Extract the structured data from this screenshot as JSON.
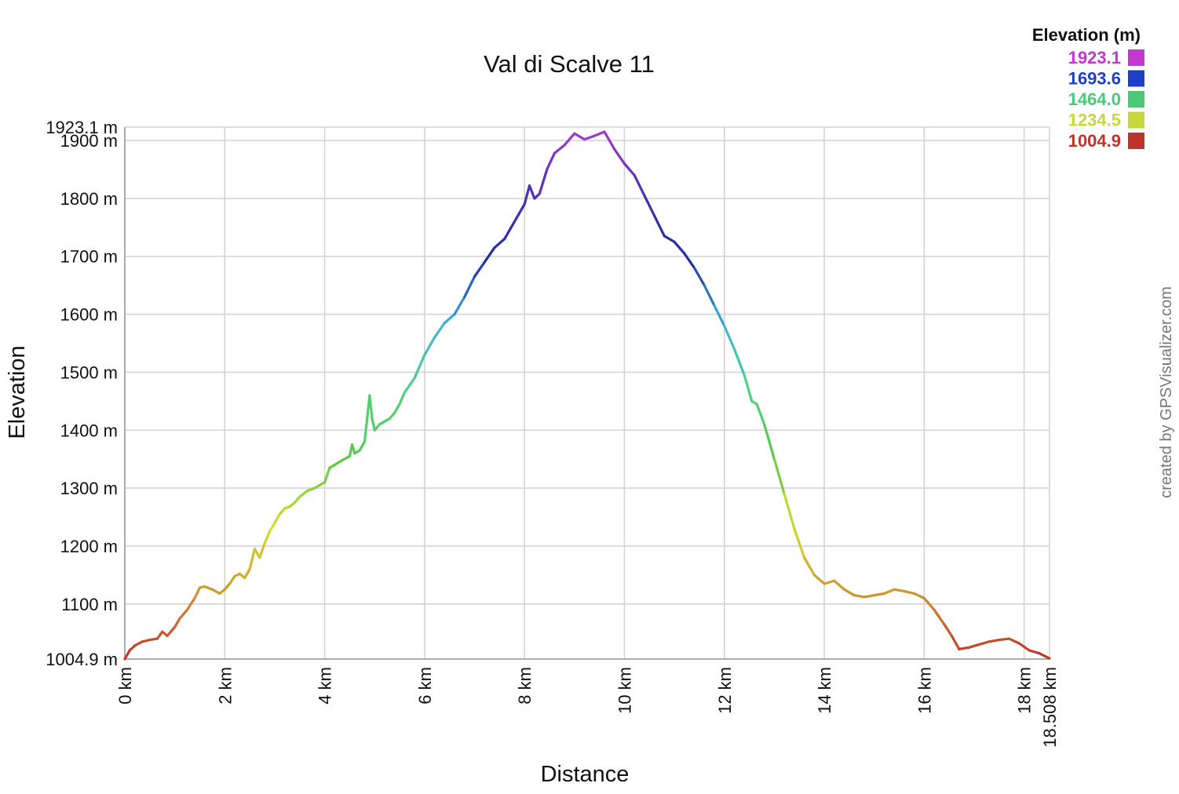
{
  "chart_data": {
    "type": "line",
    "title": "Val di Scalve 11",
    "xlabel": "Distance",
    "ylabel": "Elevation",
    "xlim": [
      0,
      18.508
    ],
    "ylim": [
      1004.9,
      1923.1
    ],
    "x_ticks": [
      {
        "value": 0,
        "label": "0 km"
      },
      {
        "value": 2,
        "label": "2 km"
      },
      {
        "value": 4,
        "label": "4 km"
      },
      {
        "value": 6,
        "label": "6 km"
      },
      {
        "value": 8,
        "label": "8 km"
      },
      {
        "value": 10,
        "label": "10 km"
      },
      {
        "value": 12,
        "label": "12 km"
      },
      {
        "value": 14,
        "label": "14 km"
      },
      {
        "value": 16,
        "label": "16 km"
      },
      {
        "value": 18,
        "label": "18 km"
      },
      {
        "value": 18.508,
        "label": "18.508 km"
      }
    ],
    "y_ticks": [
      {
        "value": 1004.9,
        "label": "1004.9 m"
      },
      {
        "value": 1100,
        "label": "1100 m"
      },
      {
        "value": 1200,
        "label": "1200 m"
      },
      {
        "value": 1300,
        "label": "1300 m"
      },
      {
        "value": 1400,
        "label": "1400 m"
      },
      {
        "value": 1500,
        "label": "1500 m"
      },
      {
        "value": 1600,
        "label": "1600 m"
      },
      {
        "value": 1700,
        "label": "1700 m"
      },
      {
        "value": 1800,
        "label": "1800 m"
      },
      {
        "value": 1900,
        "label": "1900 m"
      },
      {
        "value": 1923.1,
        "label": "1923.1 m"
      }
    ],
    "grid": true,
    "legend": {
      "title": "Elevation (m)",
      "placement": "top-right",
      "entries": [
        {
          "label": "1923.1",
          "color": "#c535cf"
        },
        {
          "label": "1693.6",
          "color": "#1e3fc8"
        },
        {
          "label": "1464.0",
          "color": "#4cc878"
        },
        {
          "label": "1234.5",
          "color": "#c6d938"
        },
        {
          "label": "1004.9",
          "color": "#c0332a"
        }
      ]
    },
    "color_scale": [
      {
        "elevation": 1004.9,
        "color": "#c0332a"
      },
      {
        "elevation": 1117.5,
        "color": "#d0952e"
      },
      {
        "elevation": 1234.5,
        "color": "#d6df30"
      },
      {
        "elevation": 1350.0,
        "color": "#5cc74a"
      },
      {
        "elevation": 1464.0,
        "color": "#4fd47e"
      },
      {
        "elevation": 1580.0,
        "color": "#3fb8d8"
      },
      {
        "elevation": 1693.6,
        "color": "#1e2f9e"
      },
      {
        "elevation": 1800.0,
        "color": "#4a2fb0"
      },
      {
        "elevation": 1923.1,
        "color": "#a83ad6"
      }
    ],
    "series": [
      {
        "x": [
          0,
          0.1,
          0.2,
          0.35,
          0.5,
          0.65,
          0.75,
          0.85,
          1.0,
          1.1,
          1.25,
          1.4,
          1.5,
          1.6,
          1.75,
          1.9,
          2.0,
          2.1,
          2.2,
          2.3,
          2.4,
          2.5,
          2.6,
          2.7,
          2.8,
          2.9,
          3.0,
          3.1,
          3.2,
          3.3,
          3.4,
          3.5,
          3.65,
          3.8,
          3.9,
          4.0,
          4.1,
          4.2,
          4.35,
          4.5,
          4.55,
          4.6,
          4.7,
          4.8,
          4.9,
          4.95,
          5.0,
          5.1,
          5.2,
          5.3,
          5.4,
          5.5,
          5.6,
          5.8,
          6.0,
          6.2,
          6.4,
          6.6,
          6.8,
          7.0,
          7.2,
          7.4,
          7.6,
          7.8,
          8.0,
          8.1,
          8.2,
          8.3,
          8.45,
          8.6,
          8.8,
          9.0,
          9.2,
          9.4,
          9.6,
          9.8,
          10.0,
          10.2,
          10.4,
          10.6,
          10.8,
          11.0,
          11.2,
          11.4,
          11.6,
          11.8,
          12.0,
          12.2,
          12.4,
          12.55,
          12.65,
          12.8,
          13.0,
          13.2,
          13.4,
          13.6,
          13.8,
          14.0,
          14.2,
          14.4,
          14.6,
          14.8,
          15.0,
          15.2,
          15.4,
          15.6,
          15.8,
          16.0,
          16.2,
          16.4,
          16.55,
          16.7,
          16.9,
          17.1,
          17.3,
          17.5,
          17.7,
          17.9,
          18.1,
          18.3,
          18.508
        ],
        "y": [
          1005,
          1020,
          1028,
          1035,
          1038,
          1040,
          1052,
          1045,
          1060,
          1075,
          1090,
          1110,
          1128,
          1130,
          1125,
          1118,
          1125,
          1135,
          1148,
          1152,
          1145,
          1160,
          1195,
          1180,
          1205,
          1225,
          1240,
          1255,
          1265,
          1268,
          1275,
          1285,
          1295,
          1300,
          1305,
          1310,
          1335,
          1340,
          1348,
          1355,
          1375,
          1360,
          1365,
          1380,
          1460,
          1420,
          1400,
          1410,
          1415,
          1420,
          1430,
          1445,
          1465,
          1490,
          1530,
          1560,
          1585,
          1600,
          1630,
          1665,
          1690,
          1715,
          1730,
          1760,
          1790,
          1822,
          1800,
          1808,
          1850,
          1878,
          1892,
          1912,
          1902,
          1908,
          1915,
          1885,
          1860,
          1840,
          1805,
          1770,
          1735,
          1725,
          1705,
          1680,
          1650,
          1615,
          1580,
          1540,
          1495,
          1450,
          1445,
          1410,
          1350,
          1290,
          1230,
          1180,
          1150,
          1135,
          1140,
          1125,
          1115,
          1112,
          1115,
          1118,
          1125,
          1122,
          1118,
          1110,
          1090,
          1065,
          1045,
          1022,
          1025,
          1030,
          1035,
          1038,
          1040,
          1032,
          1020,
          1015,
          1006
        ]
      }
    ]
  },
  "credit": "created by GPSVisualizer.com"
}
